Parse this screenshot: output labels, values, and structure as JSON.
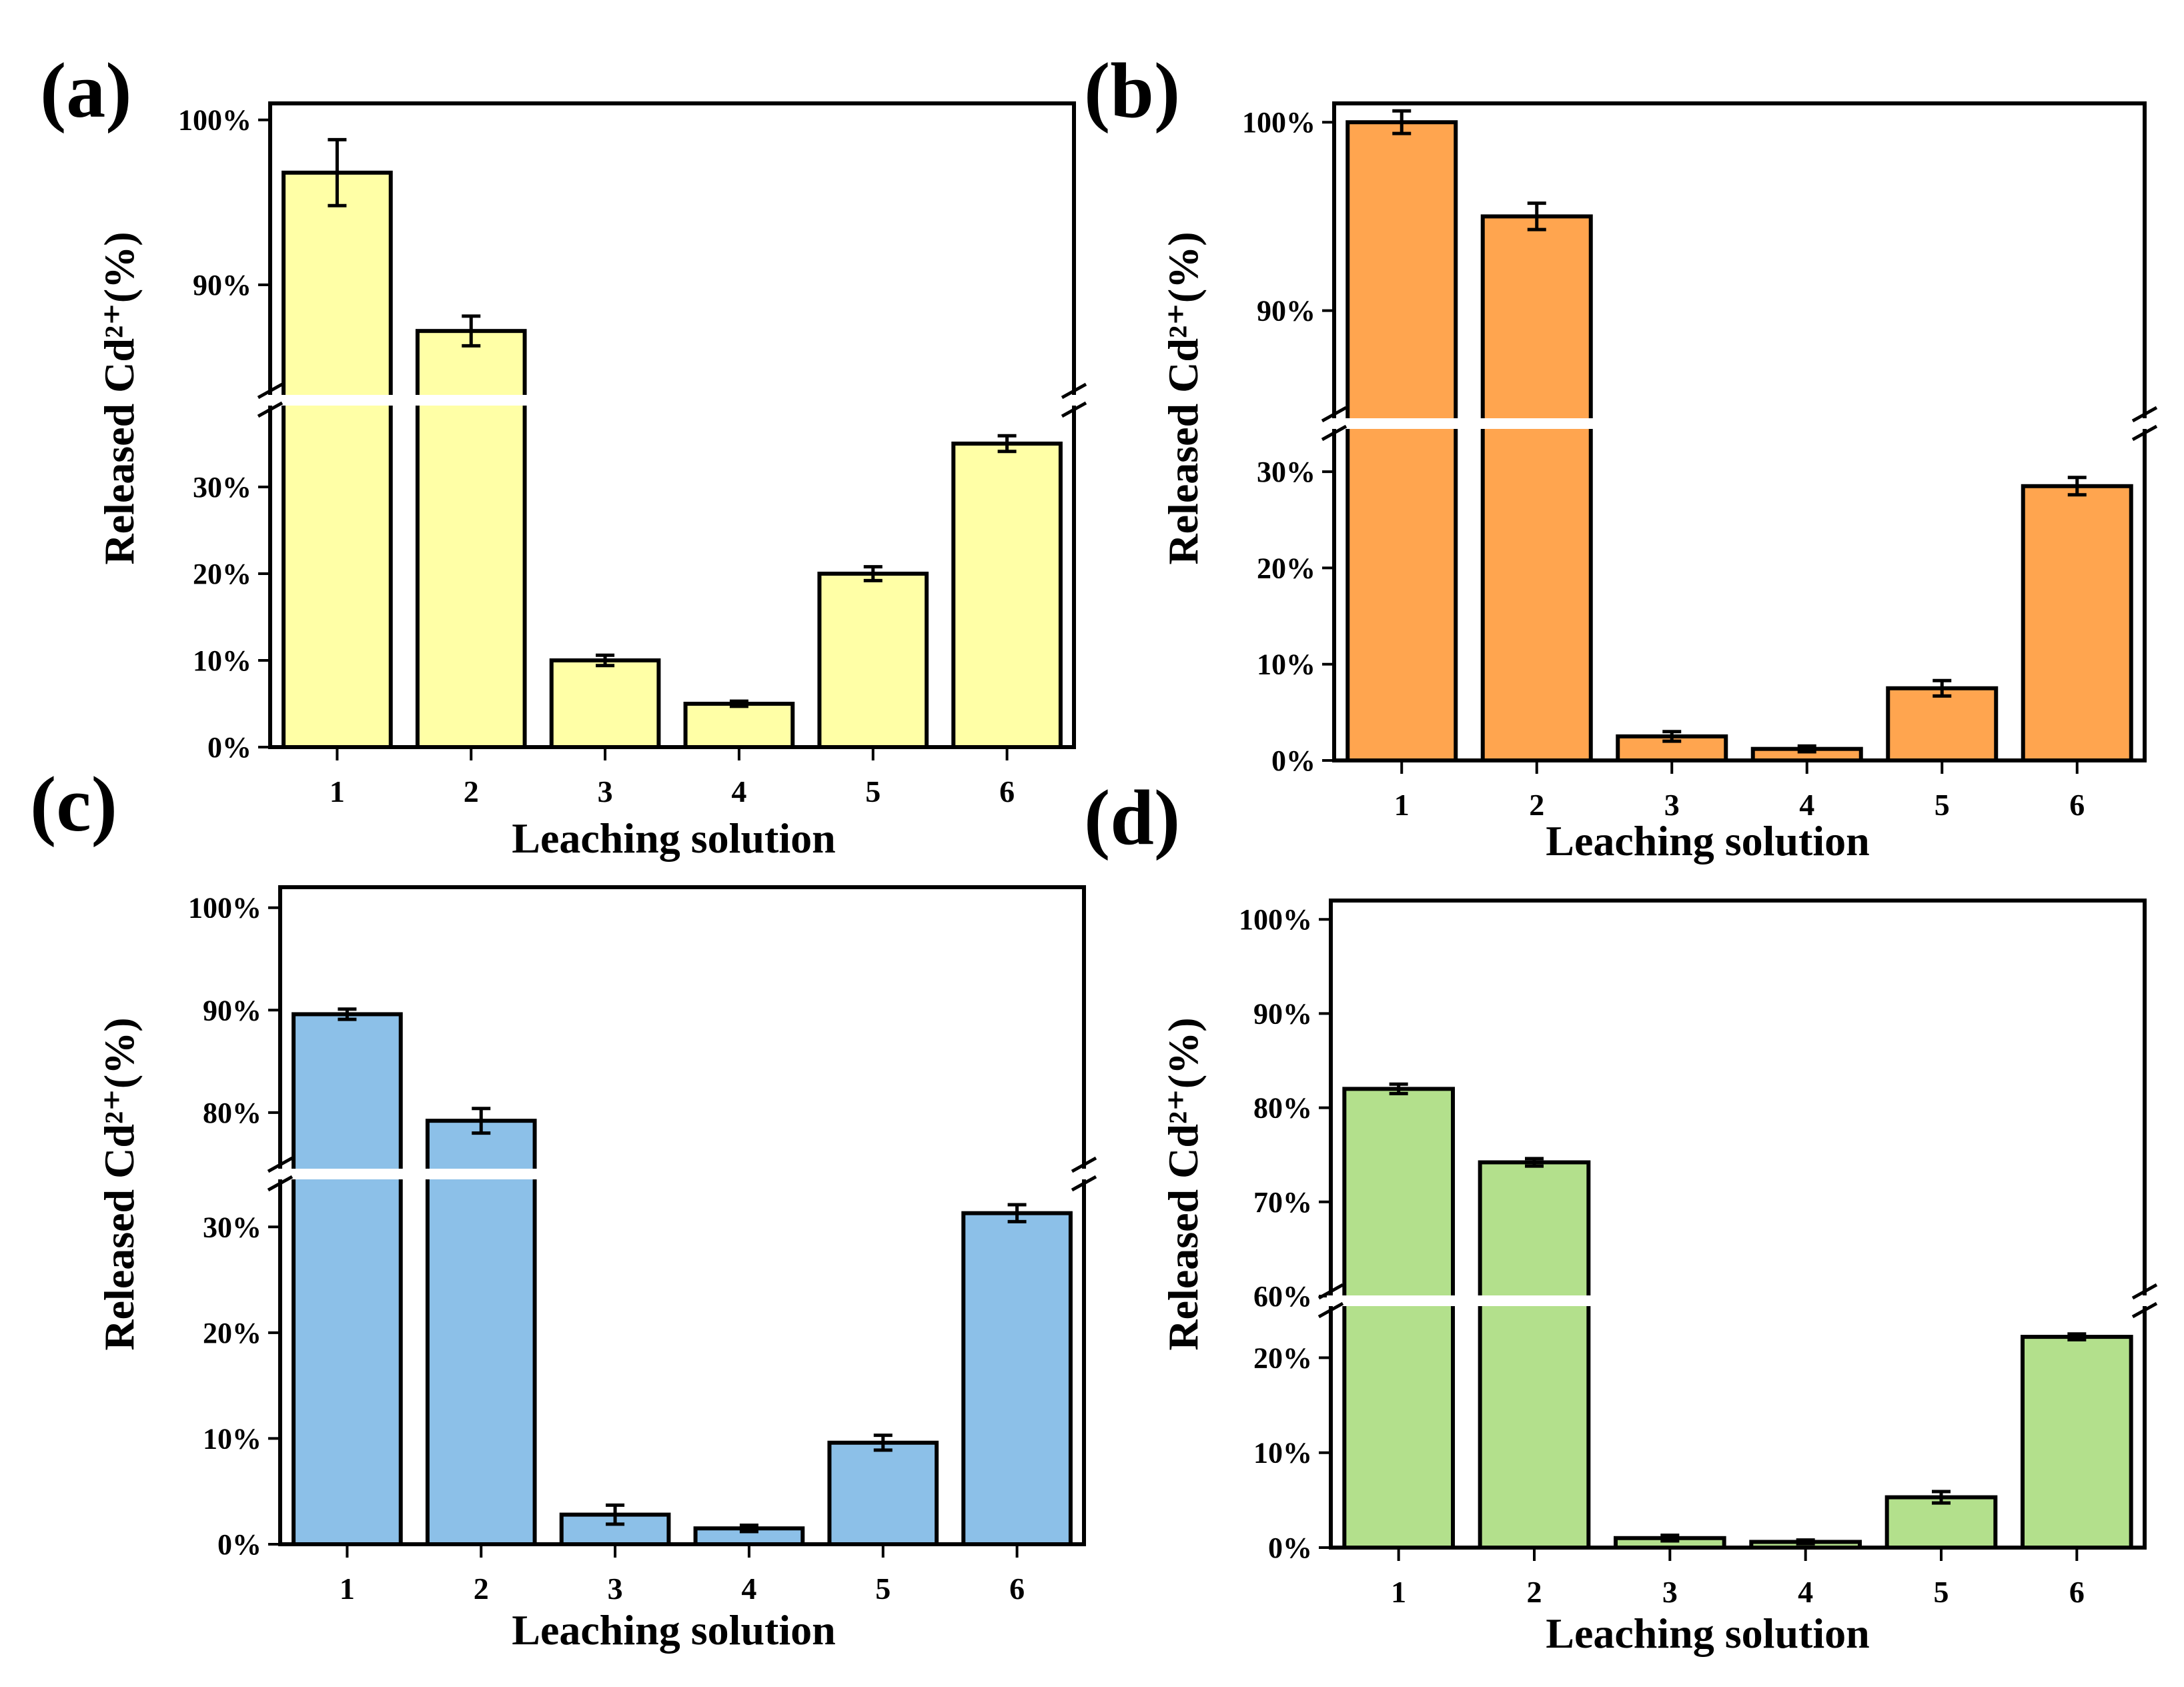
{
  "chart_data": [
    {
      "panel": "(a)",
      "type": "bar",
      "color": "#FFFFA6",
      "categories": [
        "1",
        "2",
        "3",
        "4",
        "5",
        "6"
      ],
      "values": [
        96.8,
        87.2,
        10.0,
        5.0,
        20.0,
        35.0
      ],
      "errors": [
        2.0,
        0.9,
        0.6,
        0.3,
        0.8,
        0.9
      ],
      "ylim_lower": [
        0,
        40
      ],
      "ylim_upper": [
        83,
        101
      ],
      "yticks_lower": [
        0,
        10,
        20,
        30
      ],
      "yticks_upper": [
        90,
        100
      ],
      "ytick_labels_lower": [
        "0%",
        "10%",
        "20%",
        "30%"
      ],
      "ytick_labels_upper": [
        "90%",
        "100%"
      ],
      "xlabel": "Leaching solution",
      "ylabel": "Released Cd²⁺(%)"
    },
    {
      "panel": "(b)",
      "type": "bar",
      "color": "#FFA54F",
      "categories": [
        "1",
        "2",
        "3",
        "4",
        "5",
        "6"
      ],
      "values": [
        100.0,
        95.0,
        2.5,
        1.2,
        7.5,
        28.5
      ],
      "errors": [
        0.6,
        0.7,
        0.5,
        0.3,
        0.8,
        0.9
      ],
      "ylim_lower": [
        0,
        35
      ],
      "ylim_upper": [
        84,
        101
      ],
      "yticks_lower": [
        0,
        10,
        20,
        30
      ],
      "yticks_upper": [
        90,
        100
      ],
      "ytick_labels_lower": [
        "0%",
        "10%",
        "20%",
        "30%"
      ],
      "ytick_labels_upper": [
        "90%",
        "100%"
      ],
      "xlabel": "Leaching solution",
      "ylabel": "Released Cd²⁺(%)"
    },
    {
      "panel": "(c)",
      "type": "bar",
      "color": "#8CC0E8",
      "categories": [
        "1",
        "2",
        "3",
        "4",
        "5",
        "6"
      ],
      "values": [
        89.6,
        79.2,
        2.8,
        1.5,
        9.6,
        31.3
      ],
      "errors": [
        0.5,
        1.2,
        0.9,
        0.3,
        0.7,
        0.8
      ],
      "ylim_lower": [
        0,
        35
      ],
      "ylim_upper": [
        74,
        102
      ],
      "yticks_lower": [
        0,
        10,
        20,
        30
      ],
      "yticks_upper": [
        80,
        90,
        100
      ],
      "ytick_labels_lower": [
        "0%",
        "10%",
        "20%",
        "30%"
      ],
      "ytick_labels_upper": [
        "80%",
        "90%",
        "100%"
      ],
      "xlabel": "Leaching solution",
      "ylabel": "Released Cd²⁺(%)"
    },
    {
      "panel": "(d)",
      "type": "bar",
      "color": "#B3E08C",
      "categories": [
        "1",
        "2",
        "3",
        "4",
        "5",
        "6"
      ],
      "values": [
        82.0,
        74.2,
        1.0,
        0.6,
        5.3,
        22.2
      ],
      "errors": [
        0.5,
        0.4,
        0.3,
        0.2,
        0.6,
        0.3
      ],
      "ylim_lower": [
        0,
        26
      ],
      "ylim_upper": [
        59.5,
        102
      ],
      "yticks_lower": [
        0,
        10,
        20
      ],
      "yticks_upper": [
        60,
        70,
        80,
        90,
        100
      ],
      "ytick_labels_lower": [
        "0%",
        "10%",
        "20%"
      ],
      "ytick_labels_upper": [
        "60%",
        "70%",
        "80%",
        "90%",
        "100%"
      ],
      "xlabel": "Leaching solution",
      "ylabel": "Released Cd²⁺(%)"
    }
  ]
}
